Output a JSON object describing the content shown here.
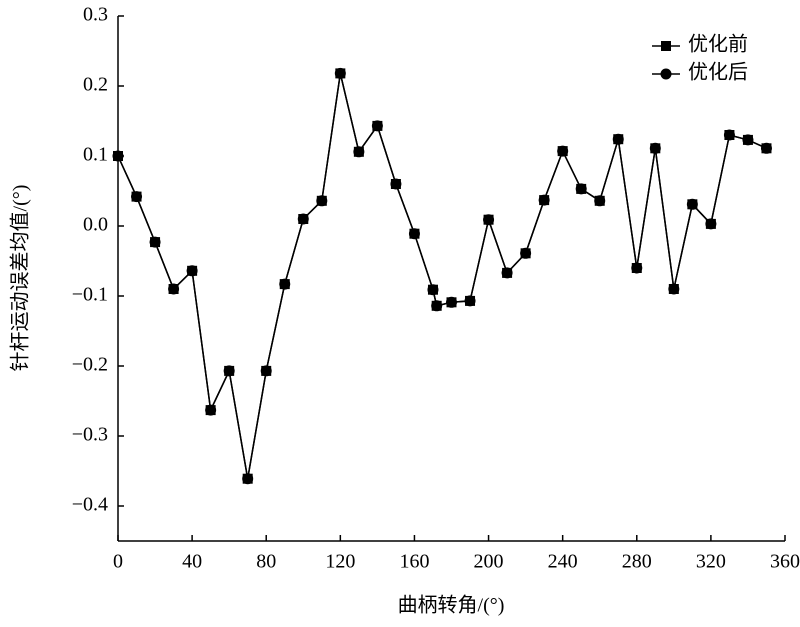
{
  "chart_data": {
    "type": "line",
    "x_label": "曲柄转角/(°)",
    "y_label": "针杆运动误差均值/(°)",
    "x": [
      0,
      10,
      20,
      30,
      40,
      50,
      60,
      70,
      80,
      90,
      100,
      110,
      120,
      130,
      140,
      150,
      160,
      170,
      172,
      180,
      190,
      200,
      210,
      220,
      230,
      240,
      250,
      260,
      270,
      280,
      290,
      300,
      310,
      320,
      330,
      340,
      350
    ],
    "series": [
      {
        "name": "优化前",
        "marker": "square",
        "color": "#000000",
        "values": [
          0.1,
          0.042,
          -0.023,
          -0.09,
          -0.064,
          -0.263,
          -0.207,
          -0.361,
          -0.207,
          -0.083,
          0.01,
          0.036,
          0.218,
          0.106,
          0.143,
          0.06,
          -0.011,
          -0.091,
          -0.114,
          -0.109,
          -0.107,
          0.009,
          -0.067,
          -0.039,
          0.037,
          0.107,
          0.053,
          0.036,
          0.124,
          -0.06,
          0.111,
          -0.09,
          0.031,
          0.003,
          0.13,
          0.123,
          0.111
        ]
      },
      {
        "name": "优化后",
        "marker": "circle",
        "color": "#000000",
        "values": [
          0.1,
          0.042,
          -0.023,
          -0.09,
          -0.064,
          -0.263,
          -0.207,
          -0.361,
          -0.207,
          -0.083,
          0.01,
          0.036,
          0.218,
          0.106,
          0.143,
          0.06,
          -0.011,
          -0.091,
          -0.114,
          -0.109,
          -0.107,
          0.009,
          -0.067,
          -0.039,
          0.037,
          0.107,
          0.053,
          0.036,
          0.124,
          -0.06,
          0.111,
          -0.09,
          0.031,
          0.003,
          0.13,
          0.123,
          0.111
        ]
      }
    ],
    "xlim": [
      0,
      360
    ],
    "xticks": [
      0,
      40,
      80,
      120,
      160,
      200,
      240,
      280,
      320,
      360
    ],
    "ylim": [
      -0.45,
      0.3
    ],
    "yticks": [
      {
        "value": -0.4,
        "label": "−0.4"
      },
      {
        "value": -0.3,
        "label": "−0.3"
      },
      {
        "value": -0.2,
        "label": "−0.2"
      },
      {
        "value": -0.1,
        "label": "−0.1"
      },
      {
        "value": 0,
        "label": "0.0"
      },
      0.1,
      0.2,
      0.3
    ],
    "grid": false,
    "legend": "upper-right"
  }
}
